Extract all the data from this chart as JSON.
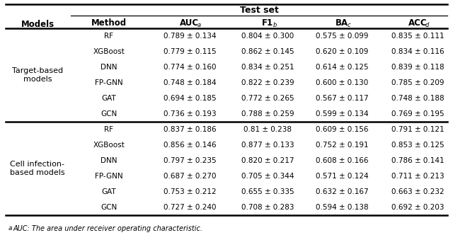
{
  "title": "Test set",
  "col_labels": [
    "Method",
    "AUC",
    "F1",
    "BA",
    "ACC"
  ],
  "col_sups": [
    "",
    "a",
    "b",
    "c",
    "d"
  ],
  "group1_label": "Target-based\nmodels",
  "group2_label": "Cell infection-\nbased models",
  "group1_rows": [
    [
      "RF",
      "0.789 ± 0.134",
      "0.804 ± 0.300",
      "0.575 ± 0.099",
      "0.835 ± 0.111"
    ],
    [
      "XGBoost",
      "0.779 ± 0.115",
      "0.862 ± 0.145",
      "0.620 ± 0.109",
      "0.834 ± 0.116"
    ],
    [
      "DNN",
      "0.774 ± 0.160",
      "0.834 ± 0.251",
      "0.614 ± 0.125",
      "0.839 ± 0.118"
    ],
    [
      "FP-GNN",
      "0.748 ± 0.184",
      "0.822 ± 0.239",
      "0.600 ± 0.130",
      "0.785 ± 0.209"
    ],
    [
      "GAT",
      "0.694 ± 0.185",
      "0.772 ± 0.265",
      "0.567 ± 0.117",
      "0.748 ± 0.188"
    ],
    [
      "GCN",
      "0.736 ± 0.193",
      "0.788 ± 0.259",
      "0.599 ± 0.134",
      "0.769 ± 0.195"
    ]
  ],
  "group2_rows": [
    [
      "RF",
      "0.837 ± 0.186",
      "0.81 ± 0.238",
      "0.609 ± 0.156",
      "0.791 ± 0.121"
    ],
    [
      "XGBoost",
      "0.856 ± 0.146",
      "0.877 ± 0.133",
      "0.752 ± 0.191",
      "0.853 ± 0.125"
    ],
    [
      "DNN",
      "0.797 ± 0.235",
      "0.820 ± 0.217",
      "0.608 ± 0.166",
      "0.786 ± 0.141"
    ],
    [
      "FP-GNN",
      "0.687 ± 0.270",
      "0.705 ± 0.344",
      "0.571 ± 0.124",
      "0.711 ± 0.213"
    ],
    [
      "GAT",
      "0.753 ± 0.212",
      "0.655 ± 0.335",
      "0.632 ± 0.167",
      "0.663 ± 0.232"
    ],
    [
      "GCN",
      "0.727 ± 0.240",
      "0.708 ± 0.283",
      "0.594 ± 0.138",
      "0.692 ± 0.203"
    ]
  ],
  "footnote_sup": "a",
  "footnote_text": "AUC: The area under receiver operating characteristic.",
  "bg_color": "#ffffff",
  "text_color": "#000000"
}
